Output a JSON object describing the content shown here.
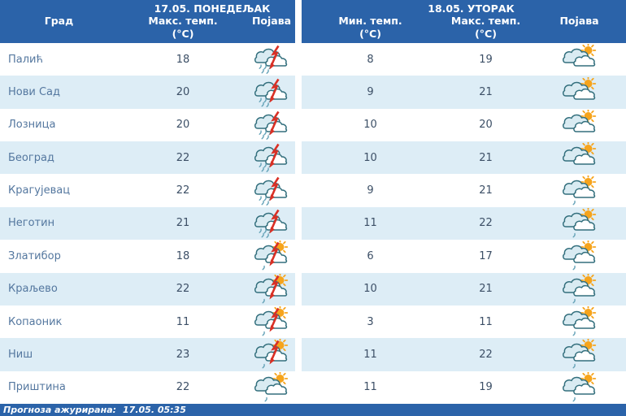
{
  "header": {
    "city_col": "Град",
    "monday": {
      "title": "17.05. ПОНЕДЕЉАК",
      "max_label": "Макс. темп.",
      "unit": "(°C)",
      "pojava_label": "Појава"
    },
    "tuesday": {
      "title": "18.05. УТОРАК",
      "min_label": "Мин. темп.",
      "max_label": "Макс. темп.",
      "unit": "(°C)",
      "pojava_label": "Појава"
    }
  },
  "rows": [
    {
      "city": "Палић",
      "mon_max": "18",
      "mon_icon": "cloud-rain-thunder",
      "tue_min": "8",
      "tue_max": "19",
      "tue_icon": "sun-cloud"
    },
    {
      "city": "Нови Сад",
      "mon_max": "20",
      "mon_icon": "cloud-rain-thunder",
      "tue_min": "9",
      "tue_max": "21",
      "tue_icon": "sun-cloud"
    },
    {
      "city": "Лозница",
      "mon_max": "20",
      "mon_icon": "cloud-rain-thunder",
      "tue_min": "10",
      "tue_max": "20",
      "tue_icon": "sun-cloud"
    },
    {
      "city": "Београд",
      "mon_max": "22",
      "mon_icon": "cloud-rain-thunder",
      "tue_min": "10",
      "tue_max": "21",
      "tue_icon": "sun-cloud"
    },
    {
      "city": "Крагујевац",
      "mon_max": "22",
      "mon_icon": "cloud-rain-thunder",
      "tue_min": "9",
      "tue_max": "21",
      "tue_icon": "sun-cloud-drizzle"
    },
    {
      "city": "Неготин",
      "mon_max": "21",
      "mon_icon": "cloud-rain-thunder",
      "tue_min": "11",
      "tue_max": "22",
      "tue_icon": "sun-cloud-drizzle"
    },
    {
      "city": "Златибор",
      "mon_max": "18",
      "mon_icon": "sun-cloud-rain-thunder",
      "tue_min": "6",
      "tue_max": "17",
      "tue_icon": "sun-cloud-drizzle"
    },
    {
      "city": "Краљево",
      "mon_max": "22",
      "mon_icon": "sun-cloud-rain-thunder",
      "tue_min": "10",
      "tue_max": "21",
      "tue_icon": "sun-cloud-drizzle"
    },
    {
      "city": "Копаоник",
      "mon_max": "11",
      "mon_icon": "sun-cloud-rain-thunder",
      "tue_min": "3",
      "tue_max": "11",
      "tue_icon": "sun-cloud-drizzle"
    },
    {
      "city": "Ниш",
      "mon_max": "23",
      "mon_icon": "sun-cloud-rain-thunder",
      "tue_min": "11",
      "tue_max": "22",
      "tue_icon": "sun-cloud-drizzle"
    },
    {
      "city": "Приштина",
      "mon_max": "22",
      "mon_icon": "sun-cloud-drizzle",
      "tue_min": "11",
      "tue_max": "19",
      "tue_icon": "sun-cloud-drizzle"
    }
  ],
  "footer": {
    "updated_label": "Прогноза ажурирана:",
    "updated_value": "17.05. 05:35"
  },
  "colors": {
    "header_blue": "#2b63a9",
    "stripe_blue": "#ddedf6",
    "city_text": "#54779f",
    "temp_text": "#3c4f66",
    "sun": "#f6a41c",
    "lightning": "#d93025",
    "cloud_stroke": "#336f7d"
  }
}
